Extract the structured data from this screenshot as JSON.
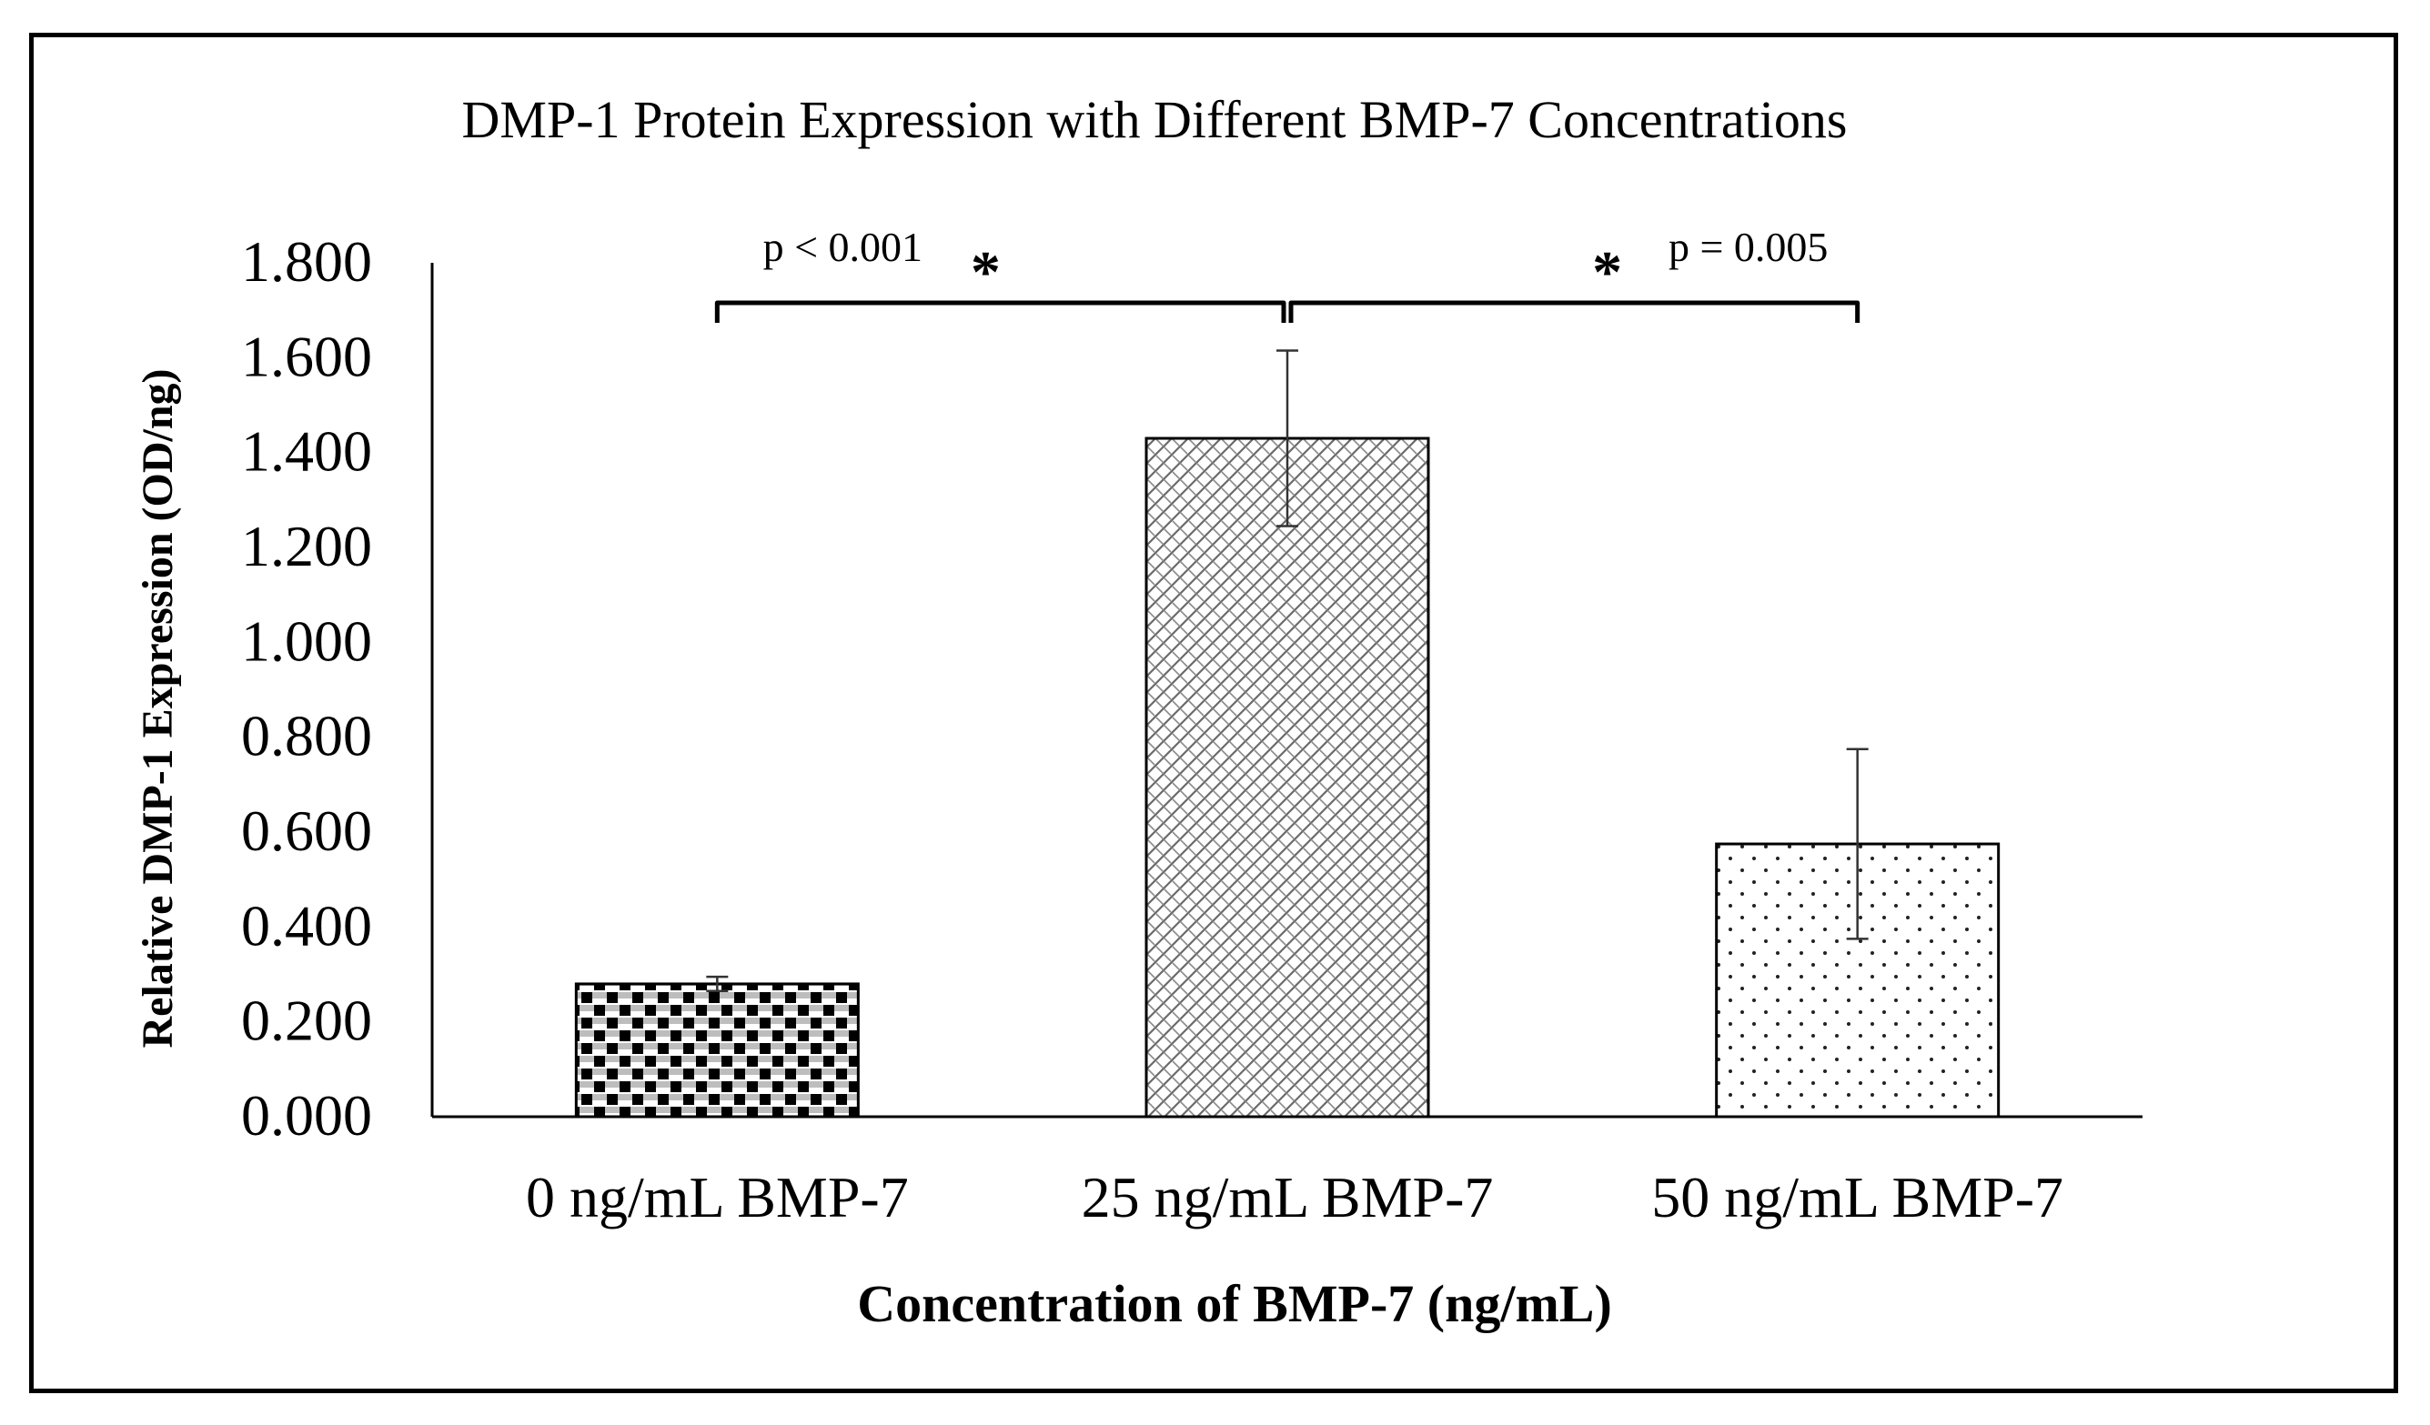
{
  "chart_data": {
    "type": "bar",
    "title": "DMP-1 Protein Expression with Different BMP-7 Concentrations",
    "xlabel": "Concentration of BMP-7 (ng/mL)",
    "ylabel": "Relative DMP-1 Expression (OD/ng)",
    "ylim": [
      0,
      1.8
    ],
    "yticks": [
      "0.000",
      "0.200",
      "0.400",
      "0.600",
      "0.800",
      "1.000",
      "1.200",
      "1.400",
      "1.600",
      "1.800"
    ],
    "ytick_values": [
      0,
      0.2,
      0.4,
      0.6,
      0.8,
      1.0,
      1.2,
      1.4,
      1.6,
      1.8
    ],
    "categories": [
      "0 ng/mL BMP-7",
      "25 ng/mL BMP-7",
      "50 ng/mL BMP-7"
    ],
    "values": [
      0.28,
      1.43,
      0.575
    ],
    "errors": [
      0.015,
      0.185,
      0.2
    ],
    "patterns": [
      "checker",
      "weave",
      "dots"
    ],
    "grid": false,
    "annotations": [
      {
        "from": 0,
        "to": 1,
        "text": "p < 0.001",
        "marker": "*"
      },
      {
        "from": 1,
        "to": 2,
        "text": "p = 0.005",
        "marker": "*"
      }
    ]
  },
  "colors": {
    "ink": "#000000",
    "background": "#ffffff"
  }
}
